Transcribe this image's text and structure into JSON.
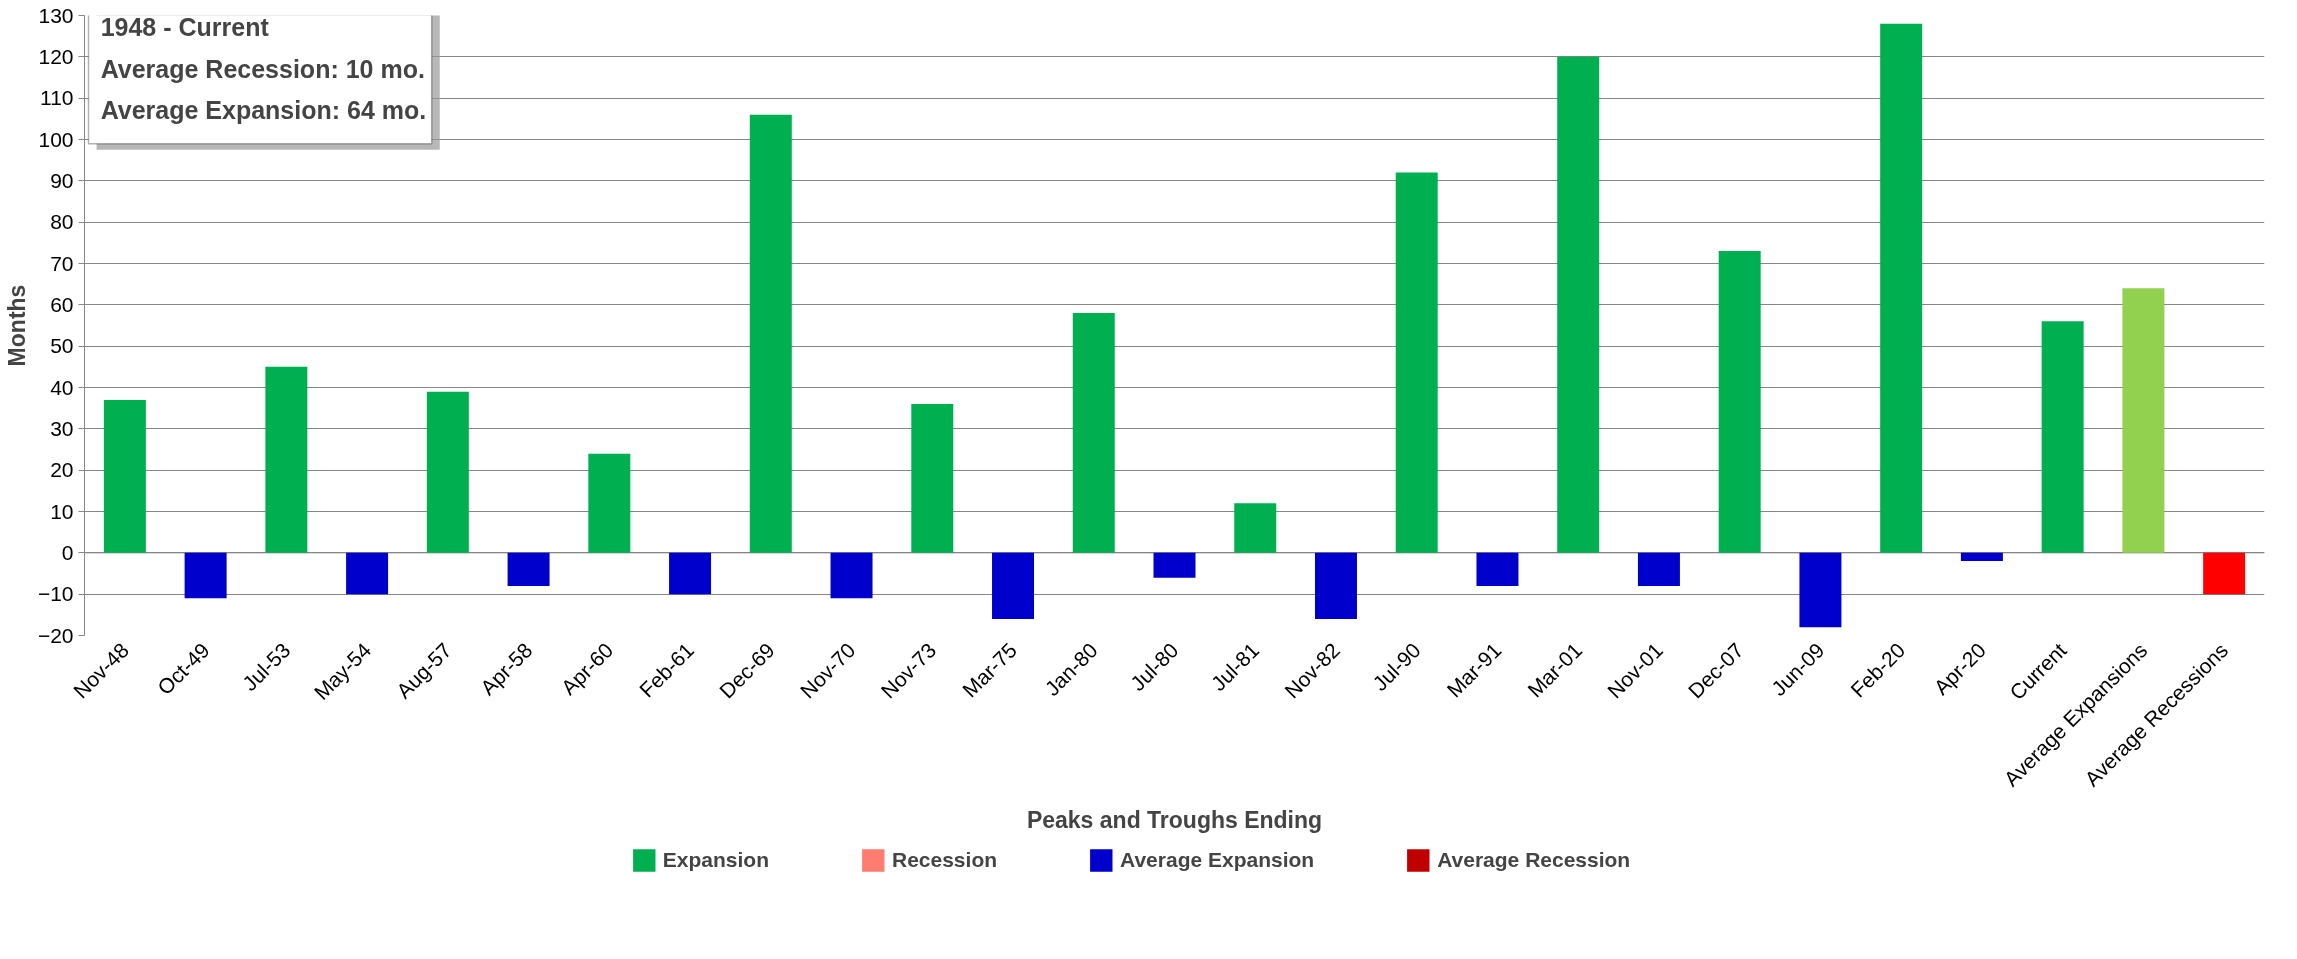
{
  "chart_data": {
    "type": "bar",
    "stacked": true,
    "annotations": [
      "1948 - Current",
      "Average Recession:  10 mo.",
      "Average Expansion:  64 mo."
    ],
    "xlabel": "Peaks and Troughs Ending",
    "ylabel": "Months",
    "categories": [
      "Nov-48",
      "Oct-49",
      "Jul-53",
      "May-54",
      "Aug-57",
      "Apr-58",
      "Apr-60",
      "Feb-61",
      "Dec-69",
      "Nov-70",
      "Nov-73",
      "Mar-75",
      "Jan-80",
      "Jul-80",
      "Jul-81",
      "Nov-82",
      "Jul-90",
      "Mar-91",
      "Mar-01",
      "Nov-01",
      "Dec-07",
      "Jun-09",
      "Feb-20",
      "Apr-20",
      "Current",
      "Average Expansions",
      "Average Recessions"
    ],
    "series": [
      {
        "name": "Expansion",
        "color": "#00b050",
        "values": [
          37,
          null,
          45,
          null,
          39,
          null,
          24,
          null,
          106,
          null,
          36,
          null,
          58,
          null,
          12,
          null,
          92,
          null,
          120,
          null,
          73,
          null,
          128,
          null,
          56,
          64,
          null
        ],
        "colors": [
          "#00b050",
          "#00b050",
          "#00b050",
          "#00b050",
          "#00b050",
          "#00b050",
          "#00b050",
          "#00b050",
          "#00b050",
          "#00b050",
          "#00b050",
          "#00b050",
          "#00b050",
          "#00b050",
          "#00b050",
          "#00b050",
          "#00b050",
          "#00b050",
          "#00b050",
          "#00b050",
          "#00b050",
          "#00b050",
          "#00b050",
          "#00b050",
          "#00b050",
          "#92d050",
          "#00b050"
        ]
      },
      {
        "name": "Recession",
        "color": "#ff7c70",
        "values": [
          null,
          null,
          null,
          null,
          null,
          null,
          null,
          null,
          null,
          null,
          null,
          null,
          null,
          null,
          null,
          null,
          null,
          null,
          null,
          null,
          null,
          null,
          null,
          null,
          null,
          null,
          null
        ]
      },
      {
        "name": "Average Expansion",
        "color": "#0000cc",
        "values": [
          null,
          -11,
          null,
          -10,
          null,
          -8,
          null,
          -10,
          null,
          -11,
          null,
          -16,
          null,
          -6,
          null,
          -16,
          null,
          -8,
          null,
          -8,
          null,
          -18,
          null,
          -2,
          null,
          null,
          -10
        ],
        "colors": [
          "#0000cc",
          "#0000cc",
          "#0000cc",
          "#0000cc",
          "#0000cc",
          "#0000cc",
          "#0000cc",
          "#0000cc",
          "#0000cc",
          "#0000cc",
          "#0000cc",
          "#0000cc",
          "#0000cc",
          "#0000cc",
          "#0000cc",
          "#0000cc",
          "#0000cc",
          "#0000cc",
          "#0000cc",
          "#0000cc",
          "#0000cc",
          "#0000cc",
          "#0000cc",
          "#0000cc",
          "#0000cc",
          "#0000cc",
          "#ff0000"
        ]
      },
      {
        "name": "Average Recession",
        "color": "#c00000",
        "values": [
          null,
          null,
          null,
          null,
          null,
          null,
          null,
          null,
          null,
          null,
          null,
          null,
          null,
          null,
          null,
          null,
          null,
          null,
          null,
          null,
          null,
          null,
          null,
          null,
          null,
          null,
          null
        ]
      }
    ],
    "ylim": [
      -20,
      130
    ],
    "yticks": [
      -20,
      -10,
      0,
      10,
      20,
      30,
      40,
      50,
      60,
      70,
      80,
      90,
      100,
      110,
      120,
      130
    ],
    "grid": "y",
    "legend": "bottom"
  }
}
